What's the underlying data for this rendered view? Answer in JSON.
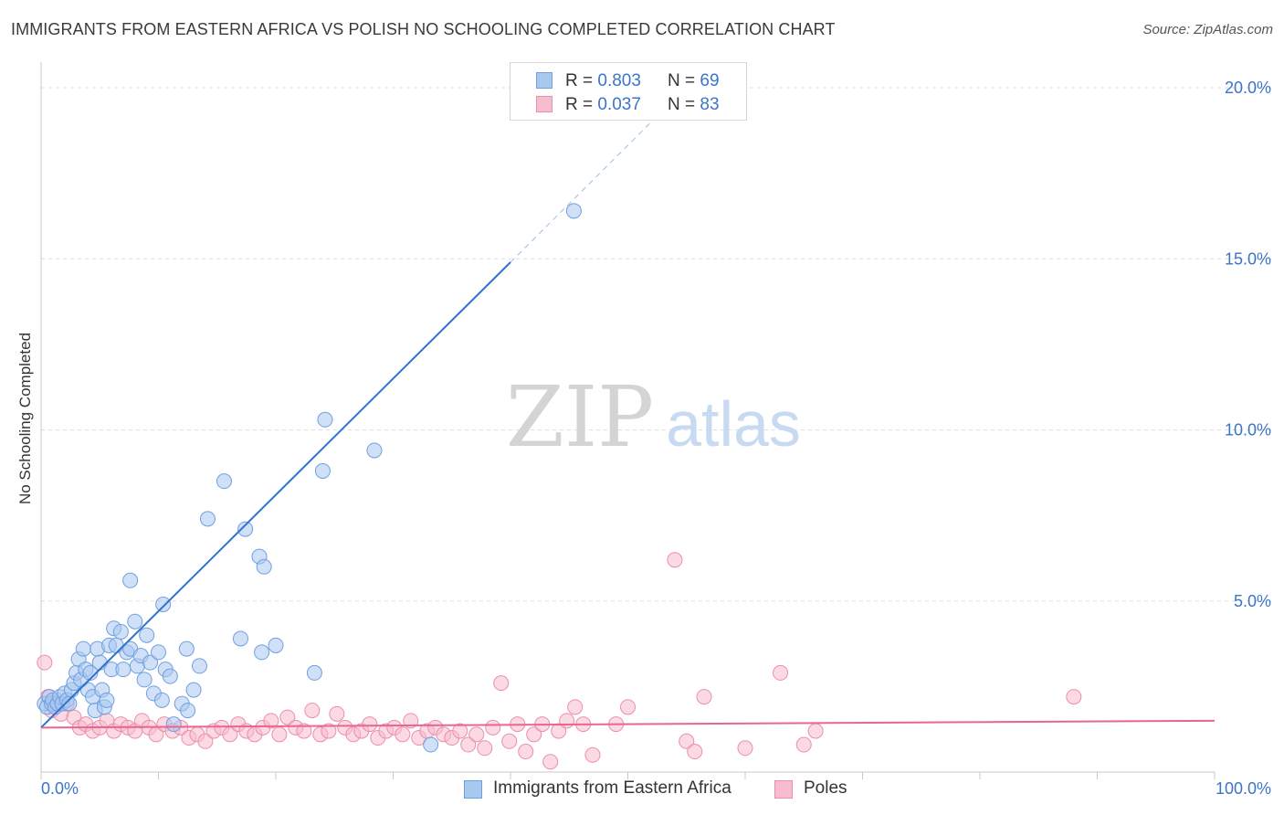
{
  "header": {
    "title": "IMMIGRANTS FROM EASTERN AFRICA VS POLISH NO SCHOOLING COMPLETED CORRELATION CHART",
    "source": "Source: ZipAtlas.com"
  },
  "watermark": {
    "zip": "ZIP",
    "atlas": "atlas"
  },
  "legend": {
    "r_label": "R = ",
    "n_label": "N = ",
    "rows": [
      {
        "r": "0.803",
        "n": "69"
      },
      {
        "r": "0.037",
        "n": "83"
      }
    ]
  },
  "colors": {
    "blue_fill": "#a9c8f0",
    "blue_stroke": "#6f9fe0",
    "blue_line": "#2f73d0",
    "pink_fill": "#f7bccd",
    "pink_stroke": "#ec8eab",
    "pink_line": "#e8668f",
    "axis_text": "#3b74c9",
    "grid": "#dddddd"
  },
  "chart_data": {
    "type": "scatter",
    "title": "IMMIGRANTS FROM EASTERN AFRICA VS POLISH NO SCHOOLING COMPLETED CORRELATION CHART",
    "xlabel": "",
    "ylabel": "No Schooling Completed",
    "xlim": [
      0,
      100
    ],
    "ylim": [
      0,
      21
    ],
    "x_tick_labels": [
      "0.0%",
      "100.0%"
    ],
    "y_ticks": [
      5,
      10,
      15,
      20
    ],
    "y_tick_labels": [
      "5.0%",
      "10.0%",
      "15.0%",
      "20.0%"
    ],
    "grid": true,
    "legend_placement": "top-center",
    "series": [
      {
        "name": "Immigrants from Eastern Africa",
        "color": "#6f9fe0",
        "r": 0.803,
        "n": 69,
        "trend": {
          "x0": 0.0,
          "y0": 1.3,
          "x1": 40.0,
          "y1": 14.9,
          "dash_to_x": 52.0,
          "dash_to_y": 19.0
        },
        "points": [
          [
            0.3,
            2.0
          ],
          [
            0.5,
            1.9
          ],
          [
            0.7,
            2.2
          ],
          [
            0.9,
            2.0
          ],
          [
            1.0,
            2.1
          ],
          [
            1.2,
            1.9
          ],
          [
            1.4,
            2.0
          ],
          [
            1.6,
            2.2
          ],
          [
            1.8,
            2.0
          ],
          [
            2.0,
            2.3
          ],
          [
            2.2,
            2.1
          ],
          [
            2.4,
            2.0
          ],
          [
            2.6,
            2.4
          ],
          [
            2.8,
            2.6
          ],
          [
            3.0,
            2.9
          ],
          [
            3.2,
            3.3
          ],
          [
            3.4,
            2.7
          ],
          [
            3.6,
            3.6
          ],
          [
            3.8,
            3.0
          ],
          [
            4.0,
            2.4
          ],
          [
            4.2,
            2.9
          ],
          [
            4.4,
            2.2
          ],
          [
            4.6,
            1.8
          ],
          [
            4.8,
            3.6
          ],
          [
            5.0,
            3.2
          ],
          [
            5.2,
            2.4
          ],
          [
            5.4,
            1.9
          ],
          [
            5.6,
            2.1
          ],
          [
            5.8,
            3.7
          ],
          [
            6.0,
            3.0
          ],
          [
            6.2,
            4.2
          ],
          [
            6.4,
            3.7
          ],
          [
            6.8,
            4.1
          ],
          [
            7.0,
            3.0
          ],
          [
            7.3,
            3.5
          ],
          [
            7.6,
            3.6
          ],
          [
            8.0,
            4.4
          ],
          [
            8.2,
            3.1
          ],
          [
            8.5,
            3.4
          ],
          [
            8.8,
            2.7
          ],
          [
            9.0,
            4.0
          ],
          [
            9.3,
            3.2
          ],
          [
            9.6,
            2.3
          ],
          [
            10.0,
            3.5
          ],
          [
            10.3,
            2.1
          ],
          [
            10.6,
            3.0
          ],
          [
            11.0,
            2.8
          ],
          [
            11.3,
            1.4
          ],
          [
            12.0,
            2.0
          ],
          [
            12.5,
            1.8
          ],
          [
            13.0,
            2.4
          ],
          [
            13.5,
            3.1
          ],
          [
            7.6,
            5.6
          ],
          [
            10.4,
            4.9
          ],
          [
            12.4,
            3.6
          ],
          [
            14.2,
            7.4
          ],
          [
            15.6,
            8.5
          ],
          [
            17.0,
            3.9
          ],
          [
            17.4,
            7.1
          ],
          [
            18.6,
            6.3
          ],
          [
            18.8,
            3.5
          ],
          [
            19.0,
            6.0
          ],
          [
            20.0,
            3.7
          ],
          [
            23.3,
            2.9
          ],
          [
            24.0,
            8.8
          ],
          [
            24.2,
            10.3
          ],
          [
            28.4,
            9.4
          ],
          [
            33.2,
            0.8
          ],
          [
            45.4,
            16.4
          ]
        ]
      },
      {
        "name": "Poles",
        "color": "#ec8eab",
        "r": 0.037,
        "n": 83,
        "trend": {
          "x0": 0.0,
          "y0": 1.3,
          "x1": 100.0,
          "y1": 1.5
        },
        "points": [
          [
            0.3,
            3.2
          ],
          [
            0.6,
            2.2
          ],
          [
            0.9,
            1.8
          ],
          [
            1.3,
            2.1
          ],
          [
            1.7,
            1.7
          ],
          [
            2.2,
            2.0
          ],
          [
            2.8,
            1.6
          ],
          [
            3.3,
            1.3
          ],
          [
            3.8,
            1.4
          ],
          [
            4.4,
            1.2
          ],
          [
            5.0,
            1.3
          ],
          [
            5.6,
            1.5
          ],
          [
            6.2,
            1.2
          ],
          [
            6.8,
            1.4
          ],
          [
            7.4,
            1.3
          ],
          [
            8.0,
            1.2
          ],
          [
            8.6,
            1.5
          ],
          [
            9.2,
            1.3
          ],
          [
            9.8,
            1.1
          ],
          [
            10.5,
            1.4
          ],
          [
            11.2,
            1.2
          ],
          [
            11.9,
            1.3
          ],
          [
            12.6,
            1.0
          ],
          [
            13.3,
            1.1
          ],
          [
            14.0,
            0.9
          ],
          [
            14.7,
            1.2
          ],
          [
            15.4,
            1.3
          ],
          [
            16.1,
            1.1
          ],
          [
            16.8,
            1.4
          ],
          [
            17.5,
            1.2
          ],
          [
            18.2,
            1.1
          ],
          [
            18.9,
            1.3
          ],
          [
            19.6,
            1.5
          ],
          [
            20.3,
            1.1
          ],
          [
            21.0,
            1.6
          ],
          [
            21.7,
            1.3
          ],
          [
            22.4,
            1.2
          ],
          [
            23.1,
            1.8
          ],
          [
            23.8,
            1.1
          ],
          [
            24.5,
            1.2
          ],
          [
            25.2,
            1.7
          ],
          [
            25.9,
            1.3
          ],
          [
            26.6,
            1.1
          ],
          [
            27.3,
            1.2
          ],
          [
            28.0,
            1.4
          ],
          [
            28.7,
            1.0
          ],
          [
            29.4,
            1.2
          ],
          [
            30.1,
            1.3
          ],
          [
            30.8,
            1.1
          ],
          [
            31.5,
            1.5
          ],
          [
            32.2,
            1.0
          ],
          [
            32.9,
            1.2
          ],
          [
            33.6,
            1.3
          ],
          [
            34.3,
            1.1
          ],
          [
            35.0,
            1.0
          ],
          [
            35.7,
            1.2
          ],
          [
            36.4,
            0.8
          ],
          [
            37.1,
            1.1
          ],
          [
            37.8,
            0.7
          ],
          [
            38.5,
            1.3
          ],
          [
            39.2,
            2.6
          ],
          [
            39.9,
            0.9
          ],
          [
            40.6,
            1.4
          ],
          [
            41.3,
            0.6
          ],
          [
            42.0,
            1.1
          ],
          [
            42.7,
            1.4
          ],
          [
            43.4,
            0.3
          ],
          [
            44.1,
            1.2
          ],
          [
            44.8,
            1.5
          ],
          [
            45.5,
            1.9
          ],
          [
            46.2,
            1.4
          ],
          [
            47.0,
            0.5
          ],
          [
            49.0,
            1.4
          ],
          [
            50.0,
            1.9
          ],
          [
            54.0,
            6.2
          ],
          [
            55.0,
            0.9
          ],
          [
            55.7,
            0.6
          ],
          [
            56.5,
            2.2
          ],
          [
            60.0,
            0.7
          ],
          [
            63.0,
            2.9
          ],
          [
            65.0,
            0.8
          ],
          [
            66.0,
            1.2
          ],
          [
            88.0,
            2.2
          ]
        ]
      }
    ]
  },
  "axes": {
    "x_min_label": "0.0%",
    "x_max_label": "100.0%"
  },
  "bottom_legend": [
    {
      "label": "Immigrants from Eastern Africa"
    },
    {
      "label": "Poles"
    }
  ]
}
